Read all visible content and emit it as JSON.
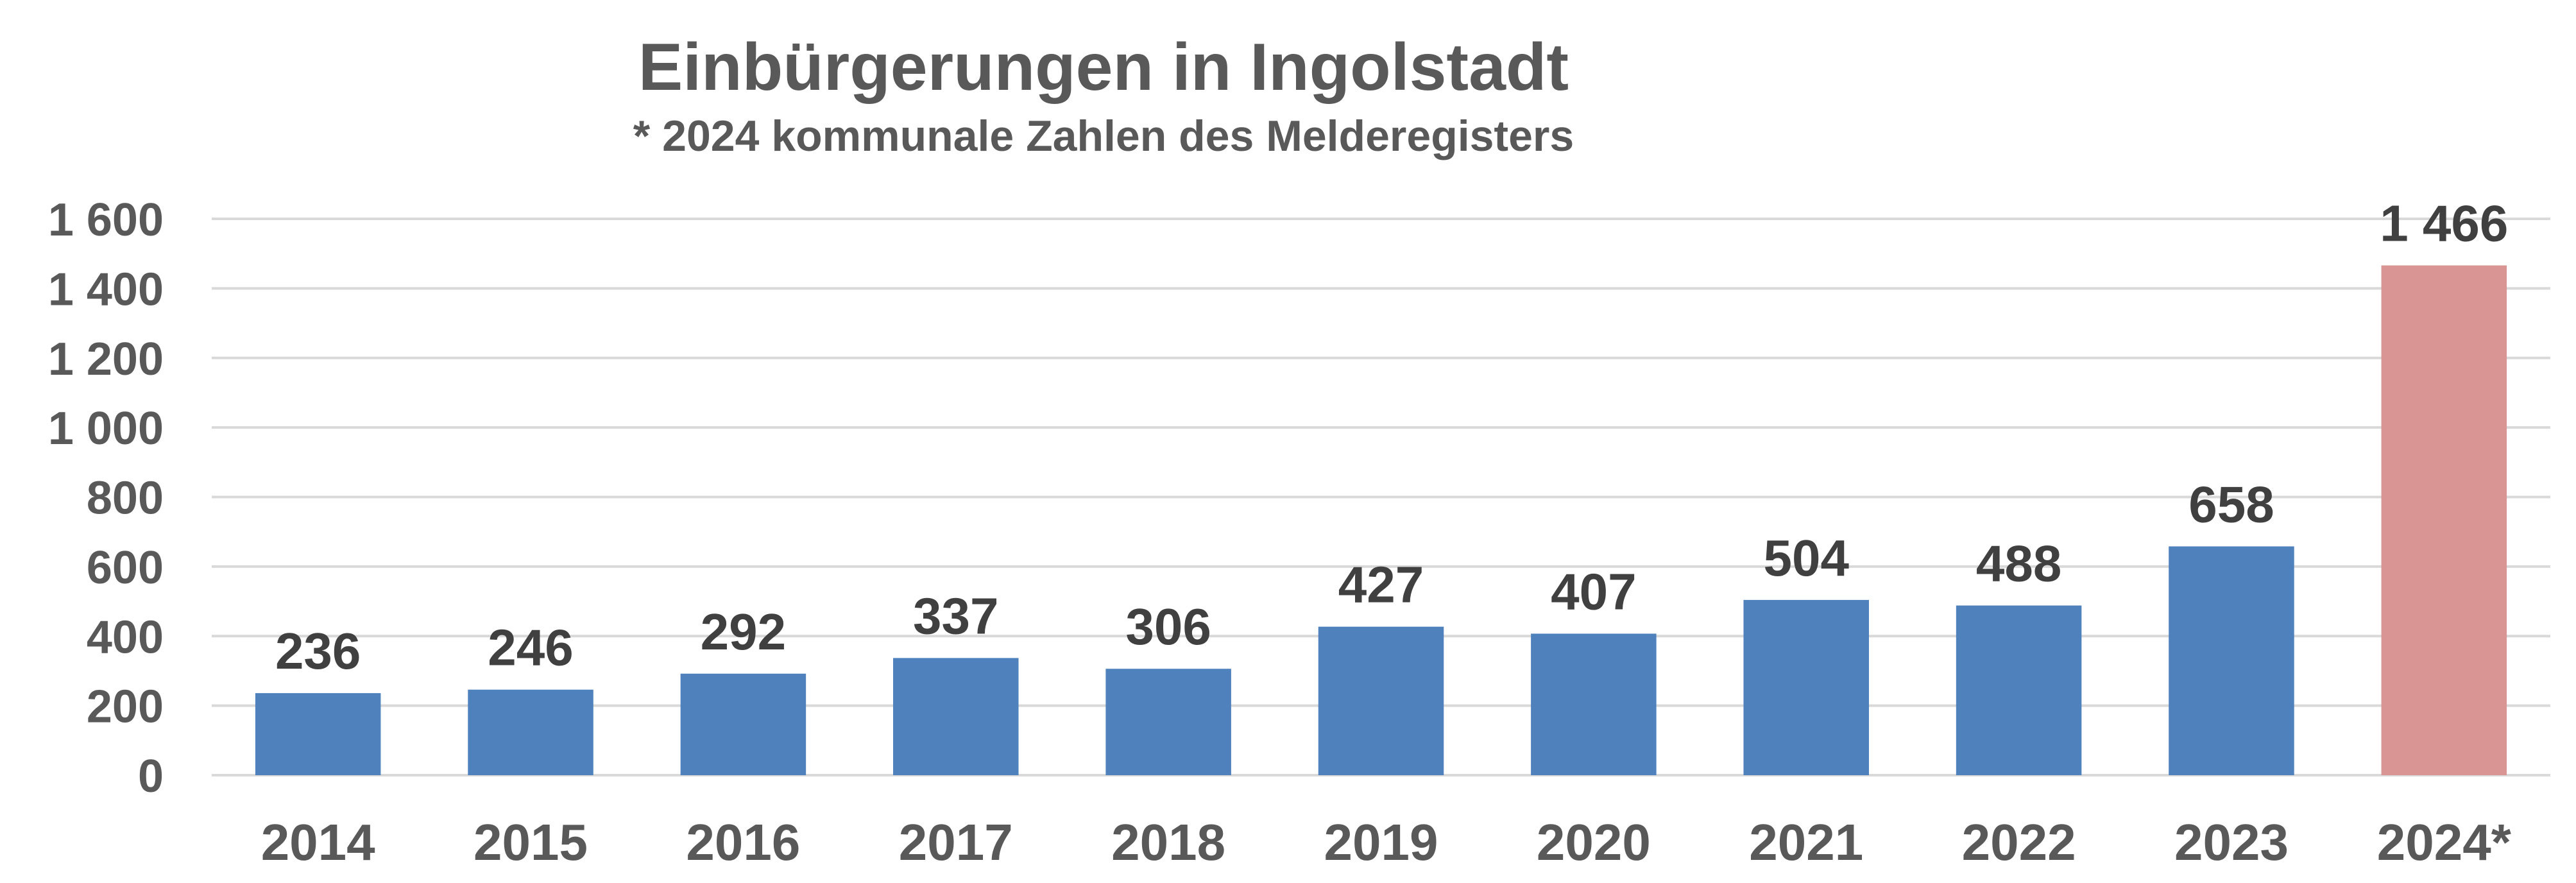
{
  "chart_data": {
    "type": "bar",
    "title": "Einbürgerungen in Ingolstadt",
    "subtitle": "* 2024 kommunale Zahlen des Melderegisters",
    "categories": [
      "2014",
      "2015",
      "2016",
      "2017",
      "2018",
      "2019",
      "2020",
      "2021",
      "2022",
      "2023",
      "2024*"
    ],
    "values": [
      236,
      246,
      292,
      337,
      306,
      427,
      407,
      504,
      488,
      658,
      1466
    ],
    "value_labels": [
      "236",
      "246",
      "292",
      "337",
      "306",
      "427",
      "407",
      "504",
      "488",
      "658",
      "1 466"
    ],
    "ylim": [
      0,
      1600
    ],
    "yticks": [
      0,
      200,
      400,
      600,
      800,
      1000,
      1200,
      1400,
      1600
    ],
    "ytick_labels": [
      "0",
      "200",
      "400",
      "600",
      "800",
      "1 000",
      "1 200",
      "1 400",
      "1 600"
    ],
    "grid": true,
    "xlabel": "",
    "ylabel": "",
    "colors": {
      "default_bar": "#4f81bd",
      "highlight_bar": "#d99594"
    },
    "highlight_index": 10
  }
}
